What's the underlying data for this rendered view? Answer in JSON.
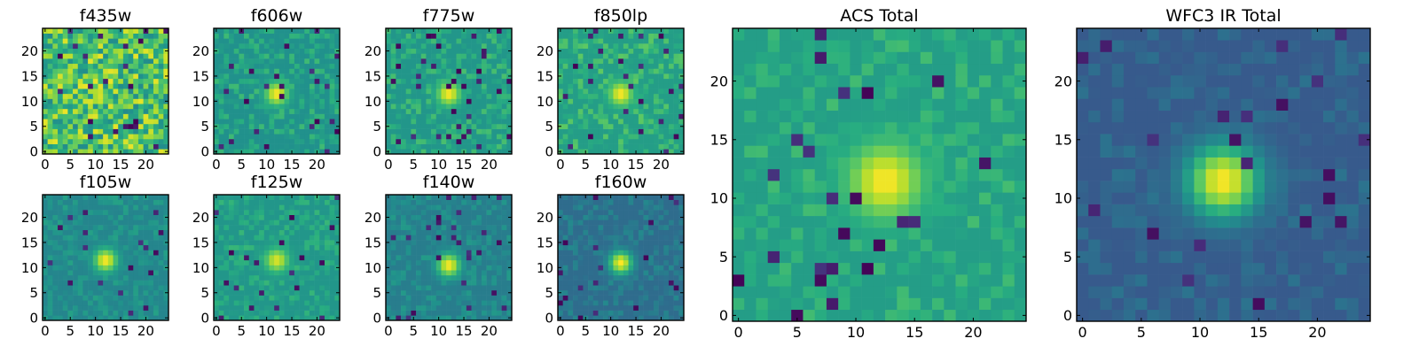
{
  "colors": {
    "colormap": "viridis",
    "colormap_stops": [
      "#440154",
      "#472c7a",
      "#3b528b",
      "#2c728e",
      "#21918c",
      "#28ae80",
      "#5ec962",
      "#addc30",
      "#fde725"
    ]
  },
  "chart_data": [
    {
      "type": "heatmap",
      "title": "f435w",
      "grid": false,
      "xlim": [
        -0.5,
        24.5
      ],
      "ylim": [
        -0.5,
        24.5
      ],
      "x_ticks": [
        "0",
        "5",
        "10",
        "15",
        "20"
      ],
      "y_ticks": [
        "0",
        "5",
        "10",
        "15",
        "20"
      ],
      "source_peak": null,
      "peak_level": 0.0,
      "background_level": 0.72,
      "noise_level": 0.25
    },
    {
      "type": "heatmap",
      "title": "f606w",
      "grid": false,
      "xlim": [
        -0.5,
        24.5
      ],
      "ylim": [
        -0.5,
        24.5
      ],
      "x_ticks": [
        "0",
        "5",
        "10",
        "15",
        "20"
      ],
      "y_ticks": [
        "0",
        "5",
        "10",
        "15",
        "20"
      ],
      "source_peak": [
        12,
        11.5
      ],
      "peak_level": 1.0,
      "background_level": 0.5,
      "noise_level": 0.18
    },
    {
      "type": "heatmap",
      "title": "f775w",
      "grid": false,
      "xlim": [
        -0.5,
        24.5
      ],
      "ylim": [
        -0.5,
        24.5
      ],
      "x_ticks": [
        "0",
        "5",
        "10",
        "15",
        "20"
      ],
      "y_ticks": [
        "0",
        "5",
        "10",
        "15",
        "20"
      ],
      "source_peak": [
        12,
        11.5
      ],
      "peak_level": 1.0,
      "background_level": 0.52,
      "noise_level": 0.18
    },
    {
      "type": "heatmap",
      "title": "f850lp",
      "grid": false,
      "xlim": [
        -0.5,
        24.5
      ],
      "ylim": [
        -0.5,
        24.5
      ],
      "x_ticks": [
        "0",
        "5",
        "10",
        "15",
        "20"
      ],
      "y_ticks": [
        "0",
        "5",
        "10",
        "15",
        "20"
      ],
      "source_peak": [
        12,
        11.5
      ],
      "peak_level": 1.0,
      "background_level": 0.55,
      "noise_level": 0.2
    },
    {
      "type": "heatmap",
      "title": "f105w",
      "grid": false,
      "xlim": [
        -0.5,
        24.5
      ],
      "ylim": [
        -0.5,
        24.5
      ],
      "x_ticks": [
        "0",
        "5",
        "10",
        "15",
        "20"
      ],
      "y_ticks": [
        "0",
        "5",
        "10",
        "15",
        "20"
      ],
      "source_peak": [
        12,
        11.5
      ],
      "peak_level": 1.0,
      "background_level": 0.45,
      "noise_level": 0.12
    },
    {
      "type": "heatmap",
      "title": "f125w",
      "grid": false,
      "xlim": [
        -0.5,
        24.5
      ],
      "ylim": [
        -0.5,
        24.5
      ],
      "x_ticks": [
        "0",
        "5",
        "10",
        "15",
        "20"
      ],
      "y_ticks": [
        "0",
        "5",
        "10",
        "15",
        "20"
      ],
      "source_peak": [
        12,
        11.5
      ],
      "peak_level": 0.95,
      "background_level": 0.52,
      "noise_level": 0.14
    },
    {
      "type": "heatmap",
      "title": "f140w",
      "grid": false,
      "xlim": [
        -0.5,
        24.5
      ],
      "ylim": [
        -0.5,
        24.5
      ],
      "x_ticks": [
        "0",
        "5",
        "10",
        "15",
        "20"
      ],
      "y_ticks": [
        "0",
        "5",
        "10",
        "15",
        "20"
      ],
      "source_peak": [
        12,
        10.5
      ],
      "peak_level": 1.0,
      "background_level": 0.42,
      "noise_level": 0.12
    },
    {
      "type": "heatmap",
      "title": "f160w",
      "grid": false,
      "xlim": [
        -0.5,
        24.5
      ],
      "ylim": [
        -0.5,
        24.5
      ],
      "x_ticks": [
        "0",
        "5",
        "10",
        "15",
        "20"
      ],
      "y_ticks": [
        "0",
        "5",
        "10",
        "15",
        "20"
      ],
      "source_peak": [
        12,
        11
      ],
      "peak_level": 1.0,
      "background_level": 0.35,
      "noise_level": 0.12
    },
    {
      "type": "heatmap",
      "title": "ACS Total",
      "grid": false,
      "xlim": [
        -0.5,
        24.5
      ],
      "ylim": [
        -0.5,
        24.5
      ],
      "x_ticks": [
        "0",
        "5",
        "10",
        "15",
        "20"
      ],
      "y_ticks": [
        "0",
        "5",
        "10",
        "15",
        "20"
      ],
      "source_peak": [
        12.5,
        11.5
      ],
      "peak_level": 1.0,
      "background_level": 0.55,
      "noise_level": 0.14
    },
    {
      "type": "heatmap",
      "title": "WFC3 IR Total",
      "grid": false,
      "xlim": [
        -0.5,
        24.5
      ],
      "ylim": [
        -0.5,
        24.5
      ],
      "x_ticks": [
        "0",
        "5",
        "10",
        "15",
        "20"
      ],
      "y_ticks": [
        "0",
        "5",
        "10",
        "15",
        "20"
      ],
      "source_peak": [
        12,
        11.5
      ],
      "peak_level": 1.0,
      "background_level": 0.28,
      "noise_level": 0.1
    }
  ]
}
